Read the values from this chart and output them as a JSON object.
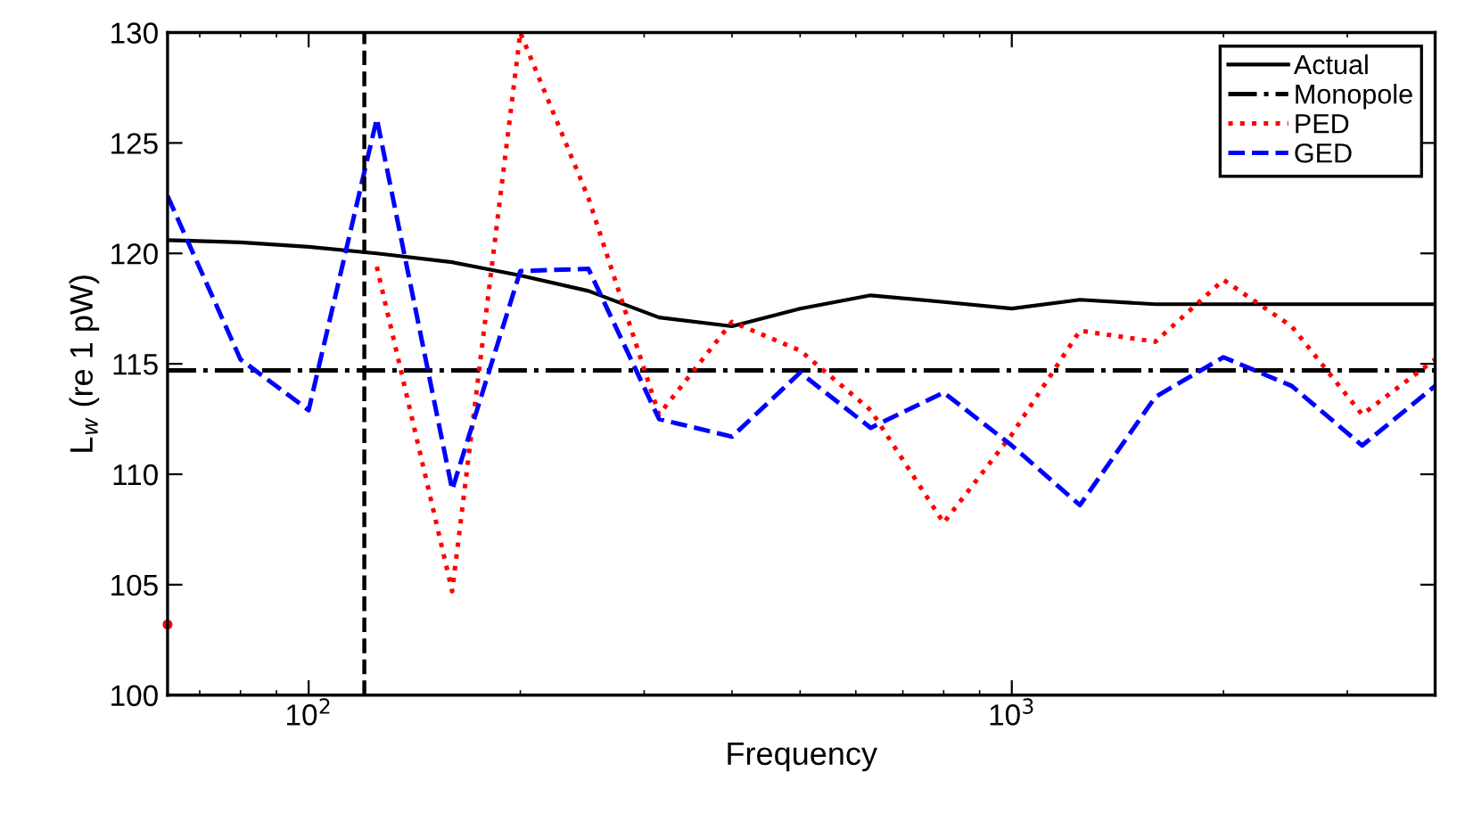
{
  "chart_data": {
    "type": "line",
    "xlabel": "Frequency",
    "ylabel": "L$_{w}$ (re 1 pW)",
    "log": "x",
    "x": [
      63,
      80,
      100,
      125,
      160,
      200,
      250,
      315,
      400,
      500,
      630,
      800,
      1000,
      1250,
      1600,
      2000,
      2500,
      3150,
      4000
    ],
    "series": [
      {
        "name": "Actual",
        "color": "#000000",
        "line_style": "solid",
        "values": [
          120.6,
          120.5,
          120.3,
          120.0,
          119.6,
          119.0,
          118.3,
          117.1,
          116.7,
          117.5,
          118.1,
          117.8,
          117.5,
          117.9,
          117.7,
          117.7,
          117.7,
          117.7,
          117.7
        ]
      },
      {
        "name": "Monopole",
        "color": "#000000",
        "line_style": "dashdot",
        "values": [
          114.7,
          114.7,
          114.7,
          114.7,
          114.7,
          114.7,
          114.7,
          114.7,
          114.7,
          114.7,
          114.7,
          114.7,
          114.7,
          114.7,
          114.7,
          114.7,
          114.7,
          114.7,
          114.7
        ]
      },
      {
        "name": "PED",
        "color": "#ff0000",
        "line_style": "dotted",
        "values": [
          103.2,
          null,
          null,
          119.4,
          104.7,
          130,
          122.5,
          112.7,
          116.9,
          115.6,
          112.9,
          107.8,
          111.8,
          116.5,
          116.0,
          118.8,
          116.7,
          112.7,
          115.2
        ]
      },
      {
        "name": "GED",
        "color": "#0000ff",
        "line_style": "dashed",
        "values": [
          122.6,
          115.2,
          112.9,
          126.1,
          109.3,
          119.2,
          119.3,
          112.5,
          111.7,
          114.6,
          112.1,
          113.7,
          111.3,
          108.6,
          113.5,
          115.3,
          114.0,
          111.3,
          114.0
        ]
      }
    ],
    "ref_lines": [
      {
        "axis": "x",
        "value": 120,
        "color": "#000000",
        "line_style": "dashed"
      }
    ],
    "xlim": [
      63,
      4000
    ],
    "ylim": [
      100,
      130
    ],
    "xticks": [
      {
        "value": 100,
        "label": "10$^{2}$"
      },
      {
        "value": 1000,
        "label": "10$^{3}$"
      }
    ],
    "yticks": [
      100,
      105,
      110,
      115,
      120,
      125,
      130
    ],
    "grid": false,
    "legend": "top right"
  }
}
